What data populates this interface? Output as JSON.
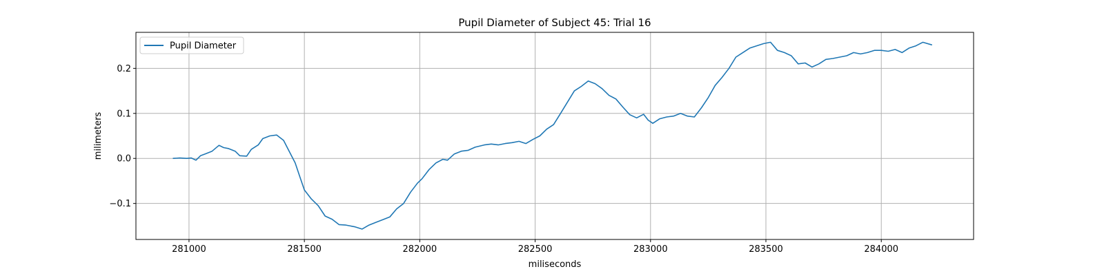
{
  "chart_data": {
    "type": "line",
    "title": "Pupil Diameter of Subject 45: Trial 16",
    "xlabel": "miliseconds",
    "ylabel": "milimeters",
    "xlim": [
      280770,
      284400
    ],
    "ylim": [
      -0.18,
      0.28
    ],
    "xticks": [
      281000,
      281500,
      282000,
      282500,
      283000,
      283500,
      284000
    ],
    "xtick_labels": [
      "281000",
      "281500",
      "282000",
      "282500",
      "283000",
      "283500",
      "284000"
    ],
    "yticks": [
      -0.1,
      0.0,
      0.1,
      0.2
    ],
    "ytick_labels": [
      "−0.1",
      "0.0",
      "0.1",
      "0.2"
    ],
    "grid": true,
    "legend_position": "top-left",
    "series": [
      {
        "name": "Pupil Diameter",
        "color": "#1f77b4",
        "x": [
          280930,
          280960,
          280990,
          281010,
          281030,
          281050,
          281070,
          281100,
          281130,
          281150,
          281170,
          281200,
          281220,
          281250,
          281270,
          281300,
          281320,
          281350,
          281380,
          281410,
          281430,
          281460,
          281480,
          281500,
          281530,
          281560,
          281590,
          281620,
          281650,
          281680,
          281700,
          281720,
          281750,
          281780,
          281810,
          281840,
          281870,
          281900,
          281930,
          281960,
          281990,
          282010,
          282040,
          282070,
          282100,
          282120,
          282150,
          282180,
          282210,
          282240,
          282280,
          282310,
          282340,
          282370,
          282400,
          282430,
          282460,
          282490,
          282520,
          282550,
          282580,
          282610,
          282640,
          282670,
          282700,
          282730,
          282760,
          282790,
          282820,
          282850,
          282880,
          282910,
          282940,
          282970,
          282990,
          283010,
          283040,
          283070,
          283100,
          283130,
          283160,
          283190,
          283220,
          283250,
          283280,
          283310,
          283340,
          283370,
          283400,
          283430,
          283460,
          283490,
          283520,
          283550,
          283580,
          283610,
          283640,
          283670,
          283700,
          283730,
          283760,
          283790,
          283820,
          283850,
          283880,
          283910,
          283940,
          283970,
          284000,
          284030,
          284060,
          284090,
          284120,
          284150,
          284180,
          284220
        ],
        "values": [
          0.0,
          0.001,
          0.0,
          0.001,
          -0.004,
          0.006,
          0.01,
          0.016,
          0.029,
          0.024,
          0.022,
          0.016,
          0.006,
          0.005,
          0.02,
          0.03,
          0.044,
          0.05,
          0.052,
          0.04,
          0.02,
          -0.01,
          -0.04,
          -0.07,
          -0.09,
          -0.105,
          -0.128,
          -0.135,
          -0.147,
          -0.148,
          -0.15,
          -0.152,
          -0.157,
          -0.148,
          -0.142,
          -0.136,
          -0.13,
          -0.112,
          -0.1,
          -0.075,
          -0.055,
          -0.045,
          -0.025,
          -0.01,
          -0.002,
          -0.004,
          0.01,
          0.016,
          0.018,
          0.025,
          0.03,
          0.032,
          0.03,
          0.033,
          0.035,
          0.038,
          0.033,
          0.042,
          0.05,
          0.065,
          0.075,
          0.1,
          0.125,
          0.15,
          0.16,
          0.172,
          0.166,
          0.155,
          0.14,
          0.132,
          0.114,
          0.097,
          0.09,
          0.098,
          0.085,
          0.078,
          0.088,
          0.092,
          0.094,
          0.1,
          0.094,
          0.092,
          0.112,
          0.135,
          0.162,
          0.18,
          0.2,
          0.225,
          0.235,
          0.245,
          0.25,
          0.255,
          0.258,
          0.24,
          0.235,
          0.228,
          0.21,
          0.212,
          0.203,
          0.21,
          0.22,
          0.222,
          0.225,
          0.228,
          0.235,
          0.232,
          0.235,
          0.24,
          0.24,
          0.238,
          0.242,
          0.235,
          0.245,
          0.25,
          0.258,
          0.252
        ]
      }
    ]
  }
}
